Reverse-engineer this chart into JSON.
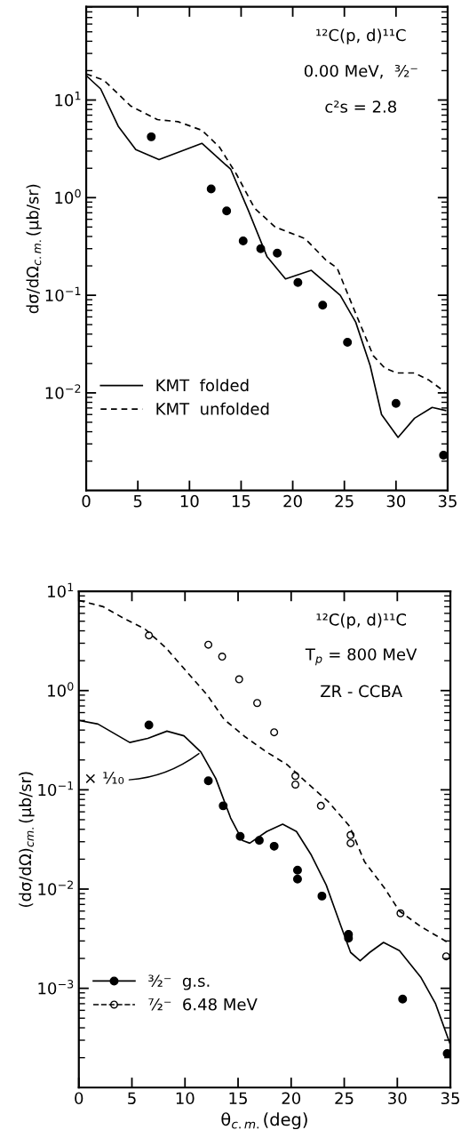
{
  "chart_data": [
    {
      "type": "line",
      "ylabel": "dσ/dΩ$_{c.m.}$(μb/sr)",
      "log": "y",
      "grid": false,
      "legend": "bottom left",
      "xlim": [
        0,
        35
      ],
      "xticks": [
        0,
        5,
        10,
        15,
        20,
        25,
        30,
        35
      ],
      "ylim": [
        0.001,
        90
      ],
      "yticks": [
        {
          "value": 10,
          "label": "10$^{1}$"
        },
        {
          "value": 1,
          "label": "10$^{0}$"
        },
        {
          "value": 0.1,
          "label": "10$^{−1}$"
        },
        {
          "value": 0.01,
          "label": "10$^{−2}$"
        }
      ],
      "annotations": [
        "¹²C(p, d)¹¹C",
        "0.00 MeV,  ³⁄₂⁻",
        "c²s = 2.8"
      ],
      "series": [
        {
          "type": "scatter",
          "marker": "circle",
          "color": "#000000",
          "x": [
            6.3,
            12.1,
            13.6,
            15.2,
            16.9,
            18.5,
            20.5,
            22.9,
            25.3,
            30.0,
            34.6
          ],
          "values": [
            4.2,
            1.23,
            0.73,
            0.36,
            0.3,
            0.27,
            0.135,
            0.079,
            0.033,
            0.0078,
            0.0023
          ]
        },
        {
          "name": "KMT  folded",
          "line_style": "solid",
          "color": "#000000",
          "x": [
            0,
            1.4,
            3.1,
            4.8,
            7.05,
            11.2,
            14.0,
            15.7,
            17.5,
            19.3,
            21.8,
            24.6,
            26.1,
            27.5,
            28.6,
            30.2,
            31.8,
            33.5,
            34.8
          ],
          "values": [
            17.8,
            13,
            5.4,
            3.1,
            2.45,
            3.6,
            1.95,
            0.74,
            0.25,
            0.147,
            0.18,
            0.1,
            0.053,
            0.019,
            0.006,
            0.0035,
            0.0055,
            0.0071,
            0.0066
          ]
        },
        {
          "name": "KMT  unfolded",
          "line_style": "dashed",
          "color": "#000000",
          "x": [
            0,
            1.7,
            4.3,
            6.9,
            8.9,
            11.2,
            12.9,
            14.6,
            16.3,
            18.3,
            21.2,
            23.2,
            24.3,
            26.1,
            27.8,
            28.9,
            30.1,
            31.8,
            33.2,
            34.7
          ],
          "values": [
            18.5,
            16,
            8.7,
            6.3,
            6.0,
            4.9,
            3.3,
            1.7,
            0.78,
            0.5,
            0.38,
            0.23,
            0.19,
            0.065,
            0.024,
            0.018,
            0.016,
            0.016,
            0.0135,
            0.0103
          ]
        }
      ]
    },
    {
      "type": "line",
      "xlabel": "θ$_{c.m.}$(deg)",
      "ylabel": "(dσ/dΩ)$_{cm.}$(μb/sr)",
      "log": "y",
      "grid": false,
      "legend": "bottom left",
      "xlim": [
        0,
        35
      ],
      "xticks": [
        0,
        5,
        10,
        15,
        20,
        25,
        30,
        35
      ],
      "ylim": [
        0.0001,
        10
      ],
      "yticks": [
        {
          "value": 10,
          "label": "10$^{1}$"
        },
        {
          "value": 1,
          "label": "10$^{0}$"
        },
        {
          "value": 0.1,
          "label": "10$^{−1}$"
        },
        {
          "value": 0.01,
          "label": "10$^{−2}$"
        },
        {
          "value": 0.001,
          "label": "10$^{−3}$"
        }
      ],
      "annotations": [
        "¹²C(p, d)¹¹C",
        "T$_{p}$ = 800 MeV",
        "ZR - CCBA",
        {
          "text": "× ¹⁄₁₀",
          "x": 11.5,
          "y": 0.24
        }
      ],
      "series": [
        {
          "type": "scatter",
          "name": "³⁄₂⁻  g.s.",
          "marker": "circle",
          "color": "#000000",
          "x": [
            6.6,
            12.2,
            13.6,
            15.2,
            17.0,
            18.4,
            20.6,
            20.6,
            22.9,
            25.4,
            25.4,
            30.5,
            34.7
          ],
          "values": [
            0.45,
            0.123,
            0.069,
            0.034,
            0.031,
            0.027,
            0.0155,
            0.0126,
            0.0085,
            0.0035,
            0.0032,
            0.00078,
            0.00022
          ]
        },
        {
          "line_style": "solid",
          "color": "#000000",
          "x": [
            0,
            1.8,
            4.8,
            6.5,
            8.3,
            9.9,
            11.5,
            12.9,
            14.3,
            15.4,
            16.1,
            17.7,
            19.2,
            20.5,
            21.9,
            23.3,
            24.7,
            25.6,
            26.5,
            27.4,
            28.7,
            30.2,
            32.2,
            33.6,
            35.0
          ],
          "values": [
            0.5,
            0.46,
            0.3,
            0.33,
            0.39,
            0.35,
            0.24,
            0.13,
            0.052,
            0.031,
            0.029,
            0.038,
            0.045,
            0.038,
            0.022,
            0.011,
            0.0042,
            0.0023,
            0.0019,
            0.0023,
            0.0029,
            0.0024,
            0.0013,
            0.0007,
            0.00027
          ]
        },
        {
          "type": "scatter",
          "name": "⁷⁄₂⁻  6.48 MeV",
          "marker": "open circle",
          "color": "#000000",
          "x": [
            6.6,
            12.2,
            13.5,
            15.1,
            16.8,
            18.4,
            20.4,
            20.4,
            22.8,
            25.6,
            25.6,
            30.3,
            34.6
          ],
          "values": [
            3.6,
            2.9,
            2.2,
            1.3,
            0.75,
            0.38,
            0.138,
            0.113,
            0.069,
            0.035,
            0.029,
            0.0057,
            0.0021
          ]
        },
        {
          "line_style": "dashed",
          "color": "#000000",
          "x": [
            0,
            2.3,
            4.3,
            6.2,
            8.2,
            10.4,
            12.1,
            13.7,
            15.7,
            17.7,
            19.6,
            21.6,
            23.5,
            25.5,
            26.9,
            28.8,
            30.2,
            32.2,
            35.0
          ],
          "values": [
            8.1,
            7.0,
            5.3,
            4.2,
            2.7,
            1.45,
            0.9,
            0.51,
            0.34,
            0.24,
            0.18,
            0.115,
            0.076,
            0.043,
            0.019,
            0.0102,
            0.006,
            0.0042,
            0.0028
          ]
        }
      ]
    }
  ]
}
